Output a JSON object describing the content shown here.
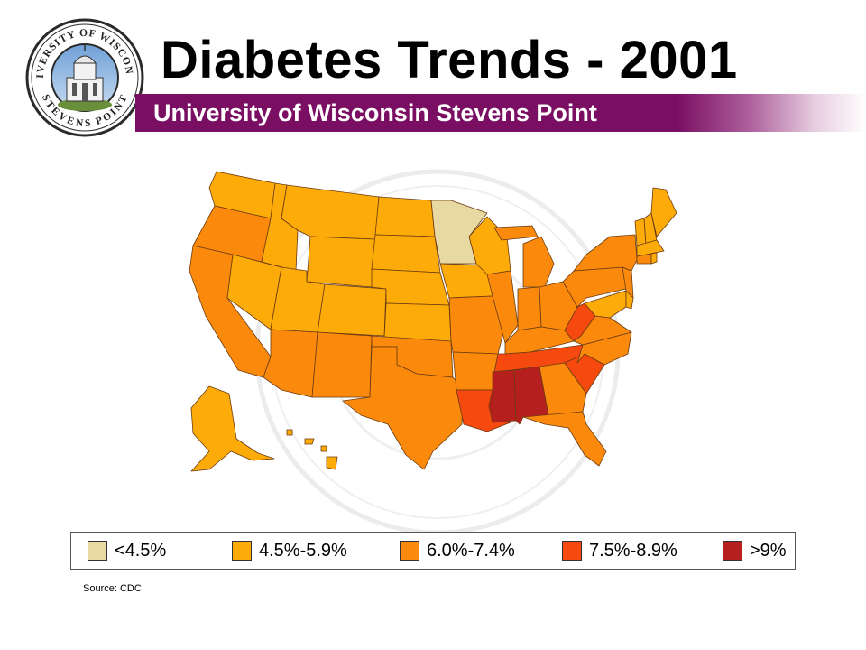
{
  "header": {
    "title": "Diabetes Trends - 2001",
    "subtitle": "University of Wisconsin Stevens Point",
    "banner_color": "#7a0e62"
  },
  "seal": {
    "text_top": "UNIVERSITY OF WISCONSIN",
    "text_bottom": "STEVENS POINT",
    "icon": "university-seal-icon"
  },
  "legend": {
    "items": [
      {
        "label": "<4.5%",
        "color": "#e8d8a2"
      },
      {
        "label": "4.5%-5.9%",
        "color": "#fdab08"
      },
      {
        "label": "6.0%-7.4%",
        "color": "#fb8a0c"
      },
      {
        "label": "7.5%-8.9%",
        "color": "#f5490f"
      },
      {
        "label": ">9%",
        "color": "#b5201f"
      }
    ]
  },
  "source": "Source: CDC"
}
